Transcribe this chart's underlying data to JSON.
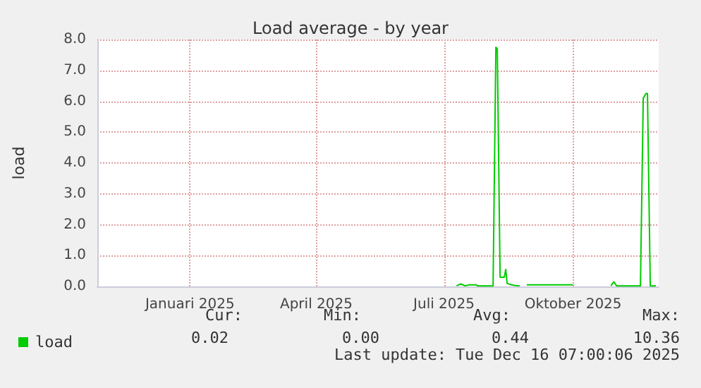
{
  "chart_data": {
    "type": "line",
    "title": "Load average - by year",
    "ylabel": "load",
    "xlim": [
      "2024-11-11",
      "2025-12-16"
    ],
    "xticks": [
      {
        "value": "2025-01-16",
        "label": "Januari 2025"
      },
      {
        "value": "2025-04-16",
        "label": "April 2025"
      },
      {
        "value": "2025-07-16",
        "label": "Juli 2025"
      },
      {
        "value": "2025-10-16",
        "label": "Oktober 2025"
      }
    ],
    "ylim": [
      0,
      8
    ],
    "yticks": [
      {
        "value": 0,
        "label": "0.0"
      },
      {
        "value": 1,
        "label": "1.0"
      },
      {
        "value": 2,
        "label": "2.0"
      },
      {
        "value": 3,
        "label": "3.0"
      },
      {
        "value": 4,
        "label": "4.0"
      },
      {
        "value": 5,
        "label": "5.0"
      },
      {
        "value": 6,
        "label": "6.0"
      },
      {
        "value": 7,
        "label": "7.0"
      },
      {
        "value": 8,
        "label": "8.0"
      }
    ],
    "grid": true,
    "legend": "bottom left",
    "marker": "none",
    "line_style": "solid",
    "series": [
      {
        "name": "load",
        "color": "#00cc00",
        "x": [
          "2025-07-25",
          "2025-07-28",
          "2025-07-31",
          "2025-08-03",
          "2025-08-08",
          "2025-08-09",
          "2025-08-20",
          "2025-08-22",
          "2025-08-23",
          "2025-08-25",
          "2025-08-28",
          "2025-08-29",
          "2025-08-30",
          "2025-09-02",
          "2025-09-05",
          "2025-09-08",
          "2025-09-10",
          "2025-09-13",
          "2025-09-25",
          "2025-10-05",
          "2025-10-16",
          "2025-10-18",
          "2025-11-12",
          "2025-11-14",
          "2025-11-16",
          "2025-12-03",
          "2025-12-05",
          "2025-12-07",
          "2025-12-08",
          "2025-12-10",
          "2025-12-14"
        ],
        "values": [
          0.02,
          0.08,
          0.02,
          0.05,
          0.05,
          0.02,
          0.02,
          7.75,
          7.7,
          0.3,
          0.3,
          0.55,
          0.1,
          0.05,
          0.03,
          0.02,
          null,
          0.05,
          0.05,
          0.05,
          0.05,
          null,
          0.02,
          0.15,
          0.02,
          0.02,
          6.1,
          6.25,
          6.25,
          0.02,
          0.02
        ]
      }
    ],
    "annotations": [
      "Cur:",
      "Min:",
      "Avg:",
      "Max:",
      "0.02",
      "0.00",
      "0.44",
      "10.36",
      "Last update: Tue Dec 16 07:00:06 2025"
    ]
  }
}
